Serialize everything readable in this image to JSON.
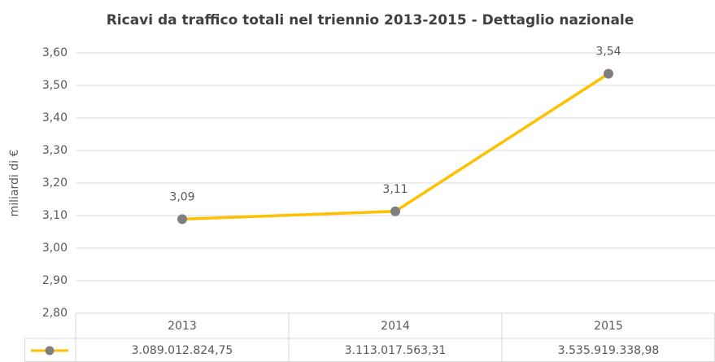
{
  "chart_data": {
    "type": "line",
    "title": "Ricavi da traffico totali nel triennio 2013-2015 - Dettaglio nazionale",
    "ylabel": "miliardi di €",
    "categories": [
      "2013",
      "2014",
      "2015"
    ],
    "values": [
      3.08901282475,
      3.11301756331,
      3.53591933898
    ],
    "value_labels": [
      "3,09",
      "3,11",
      "3,54"
    ],
    "data_table": [
      "3.089.012.824,75",
      "3.113.017.563,31",
      "3.535.919.338,98"
    ],
    "color": "#ffc000",
    "marker_color": "#7f7f7f",
    "ylim": [
      2.8,
      3.6
    ],
    "yticks": [
      {
        "value": 2.8,
        "label": "2,80"
      },
      {
        "value": 2.9,
        "label": "2,90"
      },
      {
        "value": 3.0,
        "label": "3,00"
      },
      {
        "value": 3.1,
        "label": "3,10"
      },
      {
        "value": 3.2,
        "label": "3,20"
      },
      {
        "value": 3.3,
        "label": "3,30"
      },
      {
        "value": 3.4,
        "label": "3,40"
      },
      {
        "value": 3.5,
        "label": "3,50"
      },
      {
        "value": 3.6,
        "label": "3,60"
      }
    ],
    "grid": true
  }
}
